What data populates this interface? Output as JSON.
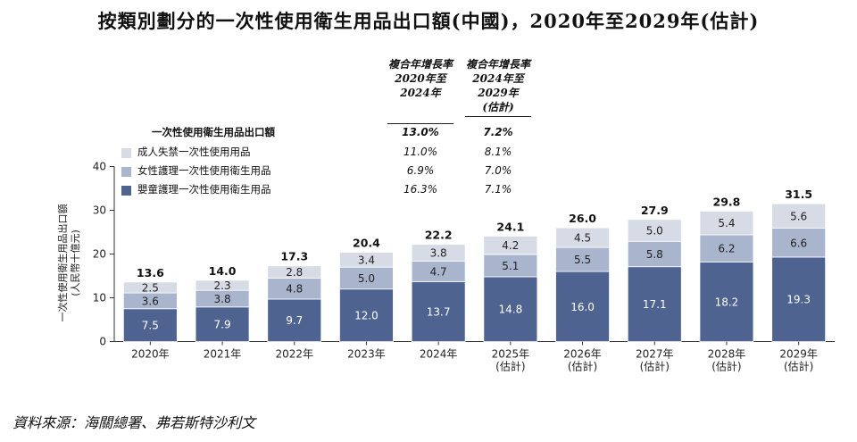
{
  "title": "按類別劃分的一次性使用衛生用品出口額(中國)，2020年至2029年(估計)",
  "cagr_headers": [
    [
      "複合年增長率",
      "2020年至",
      "2024年"
    ],
    [
      "複合年增長率",
      "2024年至",
      "2029年",
      "(估計)"
    ]
  ],
  "legend": {
    "total_label": "一次性使用衛生用品出口額",
    "items": [
      {
        "label": "成人失禁一次性使用用品",
        "color": "#d6dbe6",
        "cagr": [
          "11.0%",
          "8.1%"
        ]
      },
      {
        "label": "女性護理一次性使用衛生用品",
        "color": "#a9b5cd",
        "cagr": [
          "6.9%",
          "7.0%"
        ]
      },
      {
        "label": "嬰童護理一次性使用衛生用品",
        "color": "#4f6391",
        "cagr": [
          "16.3%",
          "7.1%"
        ]
      }
    ],
    "total_cagr": [
      "13.0%",
      "7.2%"
    ]
  },
  "chart_data": {
    "type": "bar",
    "stacked": true,
    "title": "按類別劃分的一次性使用衛生用品出口額(中國)，2020年至2029年(估計)",
    "ylabel": [
      "一次性使用衛生用品出口額",
      "(人民幣十億元)"
    ],
    "ylim": [
      0,
      40
    ],
    "yticks": [
      0,
      10,
      20,
      30,
      40
    ],
    "categories": [
      [
        "2020年"
      ],
      [
        "2021年"
      ],
      [
        "2022年"
      ],
      [
        "2023年"
      ],
      [
        "2024年"
      ],
      [
        "2025年",
        "(估計)"
      ],
      [
        "2026年",
        "(估計)"
      ],
      [
        "2027年",
        "(估計)"
      ],
      [
        "2028年",
        "(估計)"
      ],
      [
        "2029年",
        "(估計)"
      ]
    ],
    "series": [
      {
        "name": "嬰童護理一次性使用衛生用品",
        "color": "#4f6391",
        "label_color": "#ffffff",
        "values": [
          7.5,
          7.9,
          9.7,
          12.0,
          13.7,
          14.8,
          16.0,
          17.1,
          18.2,
          19.3
        ],
        "labels": [
          "7.5",
          "7.9",
          "9.7",
          "12.0",
          "13.7",
          "14.8",
          "16.0",
          "17.1",
          "18.2",
          "19.3"
        ]
      },
      {
        "name": "女性護理一次性使用衛生用品",
        "color": "#a9b5cd",
        "label_color": "#222222",
        "values": [
          3.6,
          3.8,
          4.8,
          5.0,
          4.7,
          5.1,
          5.5,
          5.8,
          6.2,
          6.6
        ],
        "labels": [
          "3.6",
          "3.8",
          "4.8",
          "5.0",
          "4.7",
          "5.1",
          "5.5",
          "5.8",
          "6.2",
          "6.6"
        ]
      },
      {
        "name": "成人失禁一次性使用用品",
        "color": "#d6dbe6",
        "label_color": "#222222",
        "values": [
          2.5,
          2.3,
          2.8,
          3.4,
          3.8,
          4.2,
          4.5,
          5.0,
          5.4,
          5.6
        ],
        "labels": [
          "2.5",
          "2.3",
          "2.8",
          "3.4",
          "3.8",
          "4.2",
          "4.5",
          "5.0",
          "5.4",
          "5.6"
        ]
      }
    ],
    "totals": [
      13.6,
      14.0,
      17.3,
      20.4,
      22.2,
      24.1,
      26.0,
      27.9,
      29.8,
      31.5
    ],
    "total_labels": [
      "13.6",
      "14.0",
      "17.3",
      "20.4",
      "22.2",
      "24.1",
      "26.0",
      "27.9",
      "29.8",
      "31.5"
    ]
  },
  "source": "資料來源：海關總署、弗若斯特沙利文"
}
